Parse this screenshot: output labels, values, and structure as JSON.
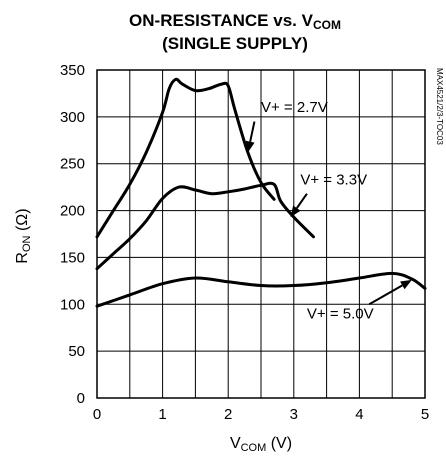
{
  "chart_data": {
    "type": "line",
    "title": {
      "line1_main": "ON-RESISTANCE vs. V",
      "line1_sub": "COM",
      "line2": "(SINGLE SUPPLY)"
    },
    "xlabel": {
      "main": "V",
      "sub": "COM",
      "suffix": " (V)"
    },
    "ylabel": {
      "main": "R",
      "sub": "ON",
      "suffix": " (Ω)"
    },
    "xlim": [
      0,
      5
    ],
    "ylim": [
      0,
      350
    ],
    "xticks": [
      0,
      1,
      2,
      3,
      4,
      5
    ],
    "yticks": [
      0,
      50,
      100,
      150,
      200,
      250,
      300,
      350
    ],
    "x_minor_step": 0.5,
    "grid": true,
    "side_code": "MAX4521/2/3-TOC03",
    "series": [
      {
        "name": "V+ = 2.7V",
        "x": [
          0,
          0.25,
          0.5,
          0.75,
          1.0,
          1.1,
          1.2,
          1.3,
          1.5,
          1.7,
          1.9,
          2.0,
          2.1,
          2.3,
          2.5,
          2.7
        ],
        "y": [
          172,
          200,
          228,
          262,
          305,
          330,
          340,
          335,
          328,
          330,
          335,
          333,
          308,
          262,
          230,
          212
        ]
      },
      {
        "name": "V+ = 3.3V",
        "x": [
          0,
          0.25,
          0.5,
          0.75,
          1.0,
          1.25,
          1.5,
          1.75,
          2.0,
          2.25,
          2.5,
          2.7,
          2.8,
          3.0,
          3.3
        ],
        "y": [
          138,
          154,
          170,
          189,
          213,
          225,
          222,
          218,
          220,
          223,
          227,
          228,
          210,
          193,
          172
        ]
      },
      {
        "name": "V+ = 5.0V",
        "x": [
          0,
          0.5,
          1.0,
          1.5,
          2.0,
          2.5,
          3.0,
          3.5,
          4.0,
          4.5,
          4.8,
          5.0
        ],
        "y": [
          98,
          110,
          122,
          128,
          124,
          120,
          120,
          123,
          128,
          133,
          127,
          117
        ]
      }
    ],
    "annotations": [
      {
        "series": 0,
        "text": "V+ = 2.7V",
        "label_at": [
          2.5,
          305
        ],
        "arrow_from": [
          2.4,
          295
        ],
        "arrow_to": [
          2.3,
          262
        ]
      },
      {
        "series": 1,
        "text": "V+ = 3.3V",
        "label_at": [
          3.1,
          228
        ],
        "arrow_from": [
          3.2,
          218
        ],
        "arrow_to": [
          2.95,
          193
        ]
      },
      {
        "series": 2,
        "text": "V+ = 5.0V",
        "label_at": [
          3.2,
          85
        ],
        "arrow_from": [
          4.15,
          100
        ],
        "arrow_to": [
          4.8,
          126
        ]
      }
    ]
  }
}
